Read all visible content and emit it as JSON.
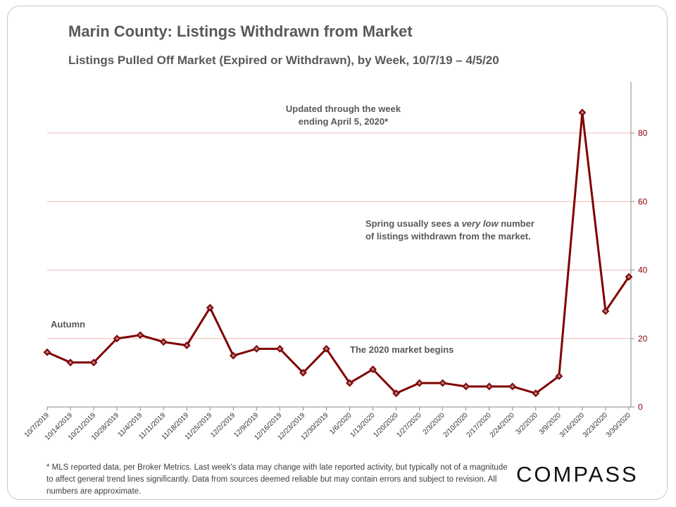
{
  "title": "Marin County: Listings Withdrawn from Market",
  "subtitle": "Listings Pulled Off Market (Expired or Withdrawn), by Week, 10/7/19 – 4/5/20",
  "annotations": {
    "updated_line1": "Updated through the week",
    "updated_line2": "ending April 5, 2020*",
    "spring_pre": "Spring usually sees a ",
    "spring_em": "very low",
    "spring_post": " number",
    "spring_line2": "of listings withdrawn from the market.",
    "autumn": "Autumn",
    "market2020": "The 2020 market begins"
  },
  "footnote": "* MLS reported data, per Broker Metrics. Last week's data may change with late reported activity, but typically not of a magnitude to affect general trend lines significantly. Data from sources deemed reliable but may contain errors and subject to revision. All numbers are approximate.",
  "logo": "COMPASS",
  "colors": {
    "line": "#7f0000",
    "grid": "#f2b8b8",
    "tick_label": "#8b0000"
  },
  "chart_data": {
    "type": "line",
    "title": "Marin County: Listings Withdrawn from Market",
    "categories": [
      "10/7/2019",
      "10/14/2019",
      "10/21/2019",
      "10/28/2019",
      "11/4/2019",
      "11/11/2019",
      "11/18/2019",
      "11/25/2019",
      "12/2/2019",
      "12/9/2019",
      "12/16/2019",
      "12/23/2019",
      "12/30/2019",
      "1/6/2020",
      "1/13/2020",
      "1/20/2020",
      "1/27/2020",
      "2/3/2020",
      "2/10/2020",
      "2/17/2020",
      "2/24/2020",
      "3/2/2020",
      "3/9/2020",
      "3/16/2020",
      "3/23/2020",
      "3/30/2020"
    ],
    "series": [
      {
        "name": "Listings Withdrawn",
        "values": [
          16,
          13,
          13,
          20,
          21,
          19,
          18,
          29,
          15,
          17,
          17,
          10,
          17,
          7,
          11,
          4,
          7,
          7,
          6,
          6,
          6,
          4,
          9,
          86,
          28,
          38
        ]
      }
    ],
    "yticks": [
      0,
      20,
      40,
      60,
      80
    ],
    "ylim": [
      0,
      95
    ],
    "y_axis_side": "right",
    "grid": true
  }
}
